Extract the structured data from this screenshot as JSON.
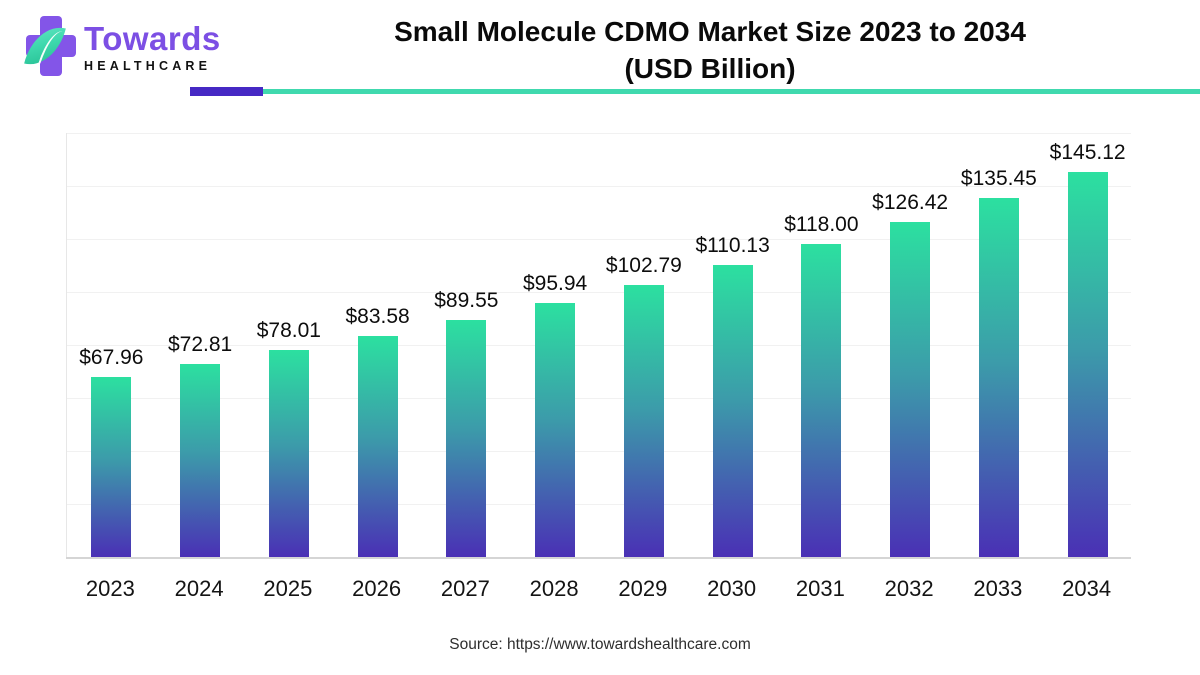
{
  "brand": {
    "name": "Towards",
    "sub": "HEALTHCARE"
  },
  "header": {
    "title_line1": "Small Molecule CDMO Market Size 2023 to 2034",
    "title_line2": "(USD Billion)"
  },
  "chart_data": {
    "type": "bar",
    "title": "Small Molecule CDMO Market Size 2023 to 2034 (USD Billion)",
    "categories": [
      "2023",
      "2024",
      "2025",
      "2026",
      "2027",
      "2028",
      "2029",
      "2030",
      "2031",
      "2032",
      "2033",
      "2034"
    ],
    "values": [
      67.96,
      72.81,
      78.01,
      83.58,
      89.55,
      95.94,
      102.79,
      110.13,
      118.0,
      126.42,
      135.45,
      145.12
    ],
    "bar_labels": [
      "$67.96",
      "$72.81",
      "$78.01",
      "$83.58",
      "$89.55",
      "$95.94",
      "$102.79",
      "$110.13",
      "$118.00",
      "$126.42",
      "$135.45",
      "$145.12"
    ],
    "xlabel": "",
    "ylabel": "",
    "ylim": [
      0,
      160
    ],
    "grid_step": 20,
    "grid": true,
    "legend_position": "none",
    "colors": {
      "bar_top": "#2ce0a0",
      "bar_mid": "#3c9baa",
      "bar_bottom": "#4a30b5",
      "gridline": "#f1f1f1",
      "axis": "#d5d5d5",
      "accent_purple": "#4629c4",
      "accent_teal": "#40d9ae",
      "logo_purple": "#7c4fe4"
    }
  },
  "footer": {
    "source": "Source: https://www.towardshealthcare.com"
  }
}
